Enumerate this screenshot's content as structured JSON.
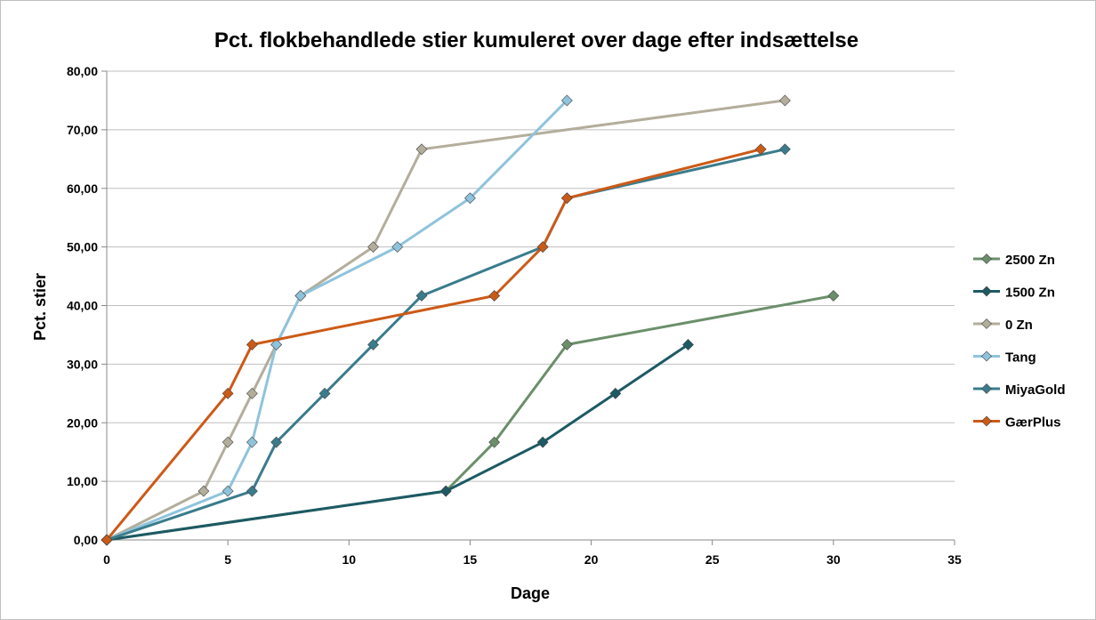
{
  "chart_data": {
    "type": "line",
    "title": "Pct. flokbehandlede stier kumuleret over dage efter indsættelse",
    "xlabel": "Dage",
    "ylabel": "Pct. stier",
    "xlim": [
      0,
      35
    ],
    "ylim": [
      0,
      80
    ],
    "x_ticks": [
      0,
      5,
      10,
      15,
      20,
      25,
      30,
      35
    ],
    "y_ticks": [
      0,
      10,
      20,
      30,
      40,
      50,
      60,
      70,
      80
    ],
    "x_tick_labels": [
      "0",
      "5",
      "10",
      "15",
      "20",
      "25",
      "30",
      "35"
    ],
    "y_tick_labels": [
      "0,00",
      "10,00",
      "20,00",
      "30,00",
      "40,00",
      "50,00",
      "60,00",
      "70,00",
      "80,00"
    ],
    "grid": "horizontal",
    "legend_position": "right",
    "marker": "diamond",
    "series": [
      {
        "name": "2500 Zn",
        "color": "#6b8f6b",
        "points": [
          [
            0,
            0
          ],
          [
            14,
            8.33
          ],
          [
            16,
            16.67
          ],
          [
            19,
            33.33
          ],
          [
            30,
            41.67
          ]
        ]
      },
      {
        "name": "1500 Zn",
        "color": "#1d5a64",
        "points": [
          [
            0,
            0
          ],
          [
            14,
            8.33
          ],
          [
            18,
            16.67
          ],
          [
            21,
            25.0
          ],
          [
            24,
            33.33
          ]
        ]
      },
      {
        "name": "0 Zn",
        "color": "#b3ad9b",
        "points": [
          [
            0,
            0
          ],
          [
            4,
            8.33
          ],
          [
            5,
            16.67
          ],
          [
            6,
            25.0
          ],
          [
            7,
            33.33
          ],
          [
            8,
            41.67
          ],
          [
            11,
            50.0
          ],
          [
            13,
            66.67
          ],
          [
            28,
            75.0
          ]
        ]
      },
      {
        "name": "Tang",
        "color": "#8fc3dc",
        "points": [
          [
            0,
            0
          ],
          [
            5,
            8.33
          ],
          [
            6,
            16.67
          ],
          [
            7,
            33.33
          ],
          [
            8,
            41.67
          ],
          [
            12,
            50.0
          ],
          [
            15,
            58.33
          ],
          [
            19,
            75.0
          ]
        ]
      },
      {
        "name": "MiyaGold",
        "color": "#3a7c8c",
        "points": [
          [
            0,
            0
          ],
          [
            6,
            8.33
          ],
          [
            7,
            16.67
          ],
          [
            9,
            25.0
          ],
          [
            11,
            33.33
          ],
          [
            13,
            41.67
          ],
          [
            18,
            50.0
          ],
          [
            19,
            58.33
          ],
          [
            28,
            66.67
          ]
        ]
      },
      {
        "name": "GærPlus",
        "color": "#cc5a17",
        "points": [
          [
            0,
            0
          ],
          [
            5,
            25.0
          ],
          [
            6,
            33.33
          ],
          [
            16,
            41.67
          ],
          [
            18,
            50.0
          ],
          [
            19,
            58.33
          ],
          [
            27,
            66.67
          ]
        ]
      }
    ]
  }
}
